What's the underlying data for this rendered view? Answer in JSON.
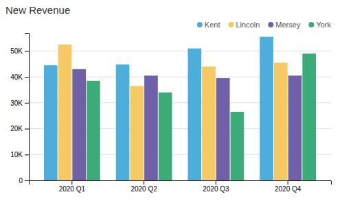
{
  "chart_data": {
    "type": "bar",
    "title": "New Revenue",
    "categories": [
      "2020 Q1",
      "2020 Q2",
      "2020 Q3",
      "2020 Q4"
    ],
    "series": [
      {
        "name": "Kent",
        "color": "#4DAEDC",
        "values": [
          44500,
          44800,
          51000,
          55500
        ]
      },
      {
        "name": "Lincoln",
        "color": "#F5C963",
        "values": [
          52500,
          36500,
          44000,
          45500
        ]
      },
      {
        "name": "Mersey",
        "color": "#7060A8",
        "values": [
          43000,
          40500,
          39500,
          40500
        ]
      },
      {
        "name": "York",
        "color": "#3DAB78",
        "values": [
          38500,
          34000,
          26500,
          49000
        ]
      }
    ],
    "ylim": [
      0,
      57000
    ],
    "yticks": [
      0,
      {
        "value": 10000,
        "label": "10K"
      },
      {
        "value": 20000,
        "label": "20K"
      },
      {
        "value": 30000,
        "label": "30K"
      },
      {
        "value": 40000,
        "label": "40K"
      },
      {
        "value": 50000,
        "label": "50K"
      }
    ],
    "grid": true,
    "legend": "top-right"
  }
}
